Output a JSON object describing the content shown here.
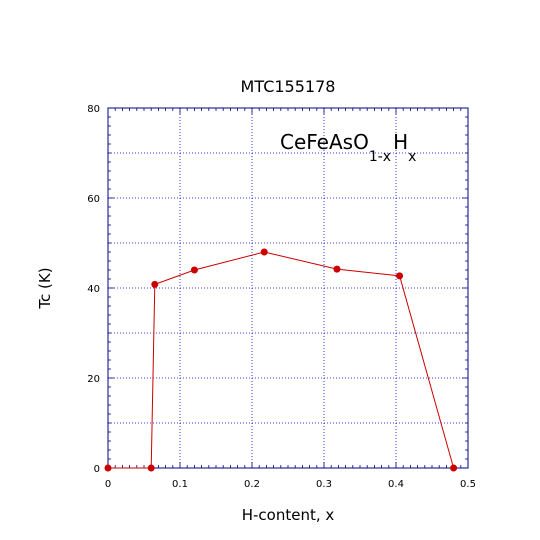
{
  "chart_data": {
    "type": "line",
    "title": "MTC155178",
    "xlabel": "H-content,  x",
    "ylabel": "Tc (K)",
    "xlim": [
      0,
      0.5
    ],
    "ylim": [
      0,
      80
    ],
    "x_ticks": [
      "0",
      "0.1",
      "0.2",
      "0.3",
      "0.4",
      "0.5"
    ],
    "y_ticks": [
      "0",
      "20",
      "40",
      "60",
      "80"
    ],
    "grid": true,
    "annotation": {
      "base": "CeFeAsO",
      "sub1": "1-x",
      "main2": "H",
      "sub2": "x"
    },
    "series": [
      {
        "color": "#cc0000",
        "x": [
          0,
          0.06,
          0.065,
          0.12,
          0.217,
          0.318,
          0.405,
          0.48
        ],
        "y": [
          0,
          0,
          40.8,
          44,
          48,
          44.2,
          42.7,
          0
        ]
      }
    ]
  }
}
